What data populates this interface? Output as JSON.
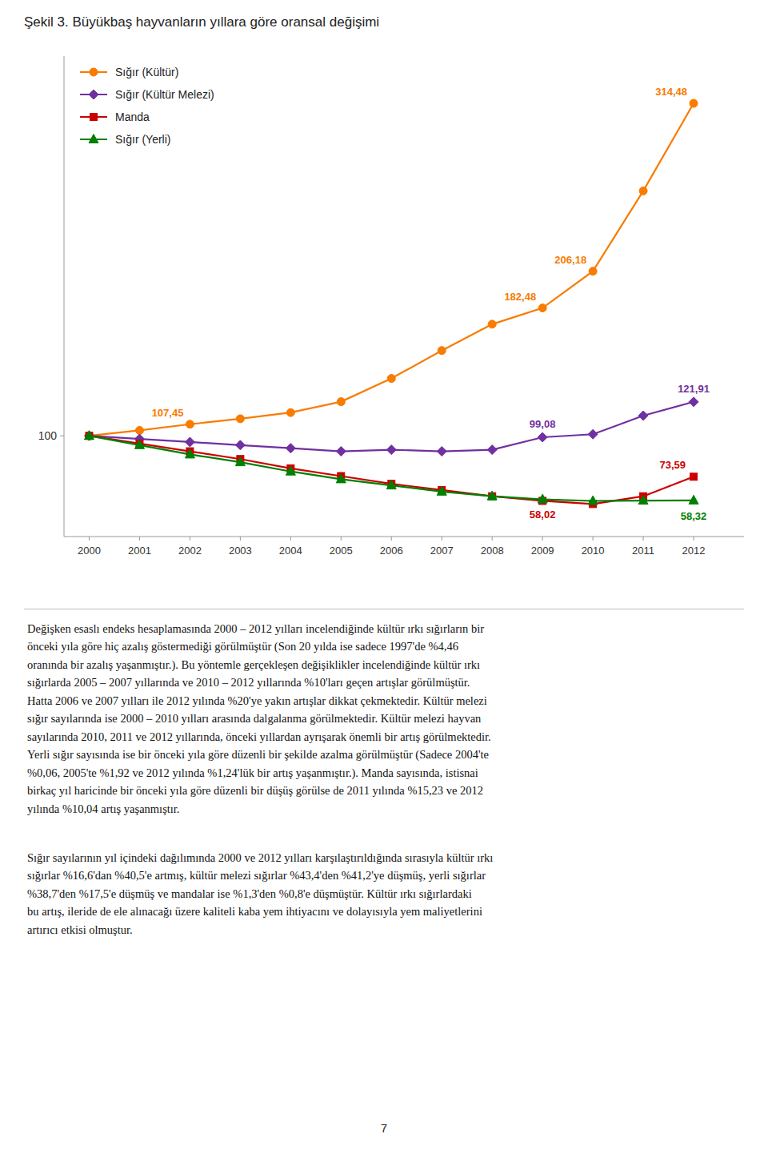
{
  "chart_data": {
    "type": "line",
    "title": "Şekil 3. Büyükbaş hayvanların yıllara göre oransal değişimi",
    "x": [
      2000,
      2001,
      2002,
      2003,
      2004,
      2005,
      2006,
      2007,
      2008,
      2009,
      2010,
      2011,
      2012
    ],
    "series": [
      {
        "name": "Sığır (Kültür)",
        "color": "#F97B00",
        "marker": "circle",
        "values": [
          100,
          103.5,
          107.45,
          111,
          115,
          122,
          137,
          155,
          172,
          182.48,
          206.18,
          258,
          314.48
        ],
        "value_labels": [
          null,
          null,
          "107,45",
          null,
          null,
          null,
          null,
          null,
          null,
          "182,48",
          "206,18",
          null,
          "314,48"
        ]
      },
      {
        "name": "Sığır (Kültür Melezi)",
        "color": "#7030A0",
        "marker": "diamond",
        "values": [
          100,
          98,
          96,
          94,
          92,
          90,
          91,
          90,
          91,
          99.08,
          101,
          113,
          121.91
        ],
        "value_labels": [
          null,
          null,
          null,
          null,
          null,
          null,
          null,
          null,
          null,
          "99,08",
          null,
          null,
          "121,91"
        ]
      },
      {
        "name": "Manda",
        "color": "#CC0000",
        "marker": "square",
        "values": [
          100,
          95,
          90,
          85,
          79,
          74,
          69,
          65,
          61,
          58.02,
          56,
          61,
          73.59
        ],
        "value_labels": [
          null,
          null,
          null,
          null,
          null,
          null,
          null,
          null,
          null,
          "58,02",
          null,
          null,
          "73,59"
        ]
      },
      {
        "name": "Sığır (Yerli)",
        "color": "#008000",
        "marker": "triangle",
        "values": [
          100,
          94,
          88,
          83,
          77,
          72,
          68,
          64,
          61,
          59,
          58,
          58.2,
          58.32
        ],
        "value_labels": [
          null,
          null,
          null,
          null,
          null,
          null,
          null,
          null,
          null,
          null,
          null,
          null,
          "58,32"
        ]
      }
    ],
    "xlim": [
      1999.5,
      2013.0
    ],
    "xticks": [
      2000,
      2001,
      2002,
      2003,
      2004,
      2005,
      2006,
      2007,
      2008,
      2009,
      2010,
      2011,
      2012
    ],
    "ylim": [
      35,
      345
    ],
    "yticks": [
      100
    ],
    "grid": false,
    "legend": "upper left",
    "data_labels": true
  },
  "paragraphs": [
    "Değişken esaslı endeks hesaplamasında 2000 – 2012 yılları incelendiğinde kültür ırkı sığırların bir\nönceki yıla göre hiç azalış göstermediği görülmüştür (Son 20 yılda ise sadece 1997'de %4,46\noranında bir azalış yaşanmıştır.). Bu yöntemle gerçekleşen değişiklikler incelendiğinde kültür ırkı\nsığırlarda 2005 – 2007 yıllarında ve 2010 – 2012 yıllarında %10'ları geçen artışlar görülmüştür.\nHatta 2006 ve 2007 yılları ile 2012 yılında %20'ye yakın artışlar dikkat çekmektedir. Kültür melezi\nsığır sayılarında ise 2000 – 2010 yılları arasında dalgalanma görülmektedir. Kültür melezi hayvan\nsayılarında 2010, 2011 ve 2012 yıllarında, önceki yıllardan ayrışarak önemli bir artış görülmektedir.\nYerli sığır sayısında ise bir önceki yıla göre düzenli bir şekilde azalma görülmüştür (Sadece 2004'te\n%0,06, 2005'te %1,92 ve 2012 yılında %1,24'lük bir artış yaşanmıştır.). Manda sayısında, istisnai\nbirkaç yıl haricinde bir önceki yıla göre düzenli bir düşüş görülse de 2011 yılında %15,23 ve 2012\nyılında %10,04 artış yaşanmıştır.",
    "Sığır sayılarının yıl içindeki dağılımında 2000 ve 2012 yılları karşılaştırıldığında sırasıyla kültür ırkı\nsığırlar %16,6'dan %40,5'e artmış, kültür melezi sığırlar %43,4'den %41,2'ye düşmüş, yerli sığırlar\n%38,7'den %17,5'e düşmüş ve mandalar ise %1,3'den %0,8'e düşmüştür. Kültür ırkı sığırlardaki\nbu artış, ileride de ele alınacağı üzere kaliteli kaba yem ihtiyacını ve dolayısıyla yem maliyetlerini\nartırıcı etkisi olmuştur."
  ],
  "page_number": "7"
}
